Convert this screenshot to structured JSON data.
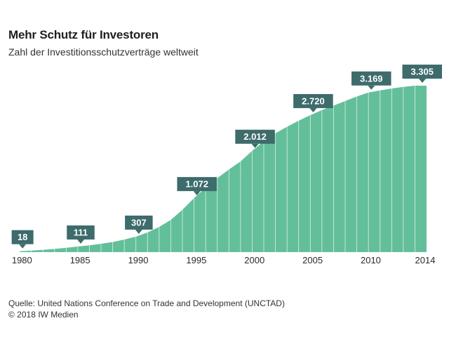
{
  "header": {
    "title": "Mehr Schutz für Investoren",
    "subtitle": "Zahl der Investitionsschutzverträge weltweit"
  },
  "footer": {
    "source": "Quelle: United Nations Conference on Trade and Development (UNCTAD)",
    "copyright": "© 2018 IW Medien"
  },
  "colors": {
    "area": "#63bf9a",
    "callout": "#3e6b6b",
    "callout_text": "#ffffff",
    "axis_text": "#2a2a2a"
  },
  "chart_data": {
    "type": "area",
    "title": "Mehr Schutz für Investoren",
    "subtitle": "Zahl der Investitionsschutzverträge weltweit",
    "xlabel": "",
    "ylabel": "",
    "grid": false,
    "x": [
      1980,
      1981,
      1982,
      1983,
      1984,
      1985,
      1986,
      1987,
      1988,
      1989,
      1990,
      1991,
      1992,
      1993,
      1994,
      1995,
      1996,
      1997,
      1998,
      1999,
      2000,
      2001,
      2002,
      2003,
      2004,
      2005,
      2006,
      2007,
      2008,
      2009,
      2010,
      2011,
      2012,
      2013,
      2014
    ],
    "values": [
      18,
      30,
      45,
      62,
      85,
      111,
      135,
      165,
      200,
      250,
      307,
      390,
      500,
      640,
      840,
      1072,
      1280,
      1470,
      1640,
      1800,
      2012,
      2200,
      2360,
      2490,
      2610,
      2720,
      2820,
      2910,
      3000,
      3090,
      3169,
      3210,
      3250,
      3280,
      3305
    ],
    "ylim": [
      0,
      3305
    ],
    "xticks": [
      "1980",
      "1985",
      "1990",
      "1995",
      "2000",
      "2005",
      "2010",
      "2014"
    ],
    "xtick_years": [
      1980,
      1985,
      1990,
      1995,
      2000,
      2005,
      2010,
      2014
    ],
    "annotations": [
      {
        "year": 1980,
        "label": "18"
      },
      {
        "year": 1985,
        "label": "111"
      },
      {
        "year": 1990,
        "label": "307"
      },
      {
        "year": 1995,
        "label": "1.072"
      },
      {
        "year": 2000,
        "label": "2.012"
      },
      {
        "year": 2005,
        "label": "2.720"
      },
      {
        "year": 2010,
        "label": "3.169"
      },
      {
        "year": 2014,
        "label": "3.305"
      }
    ]
  }
}
